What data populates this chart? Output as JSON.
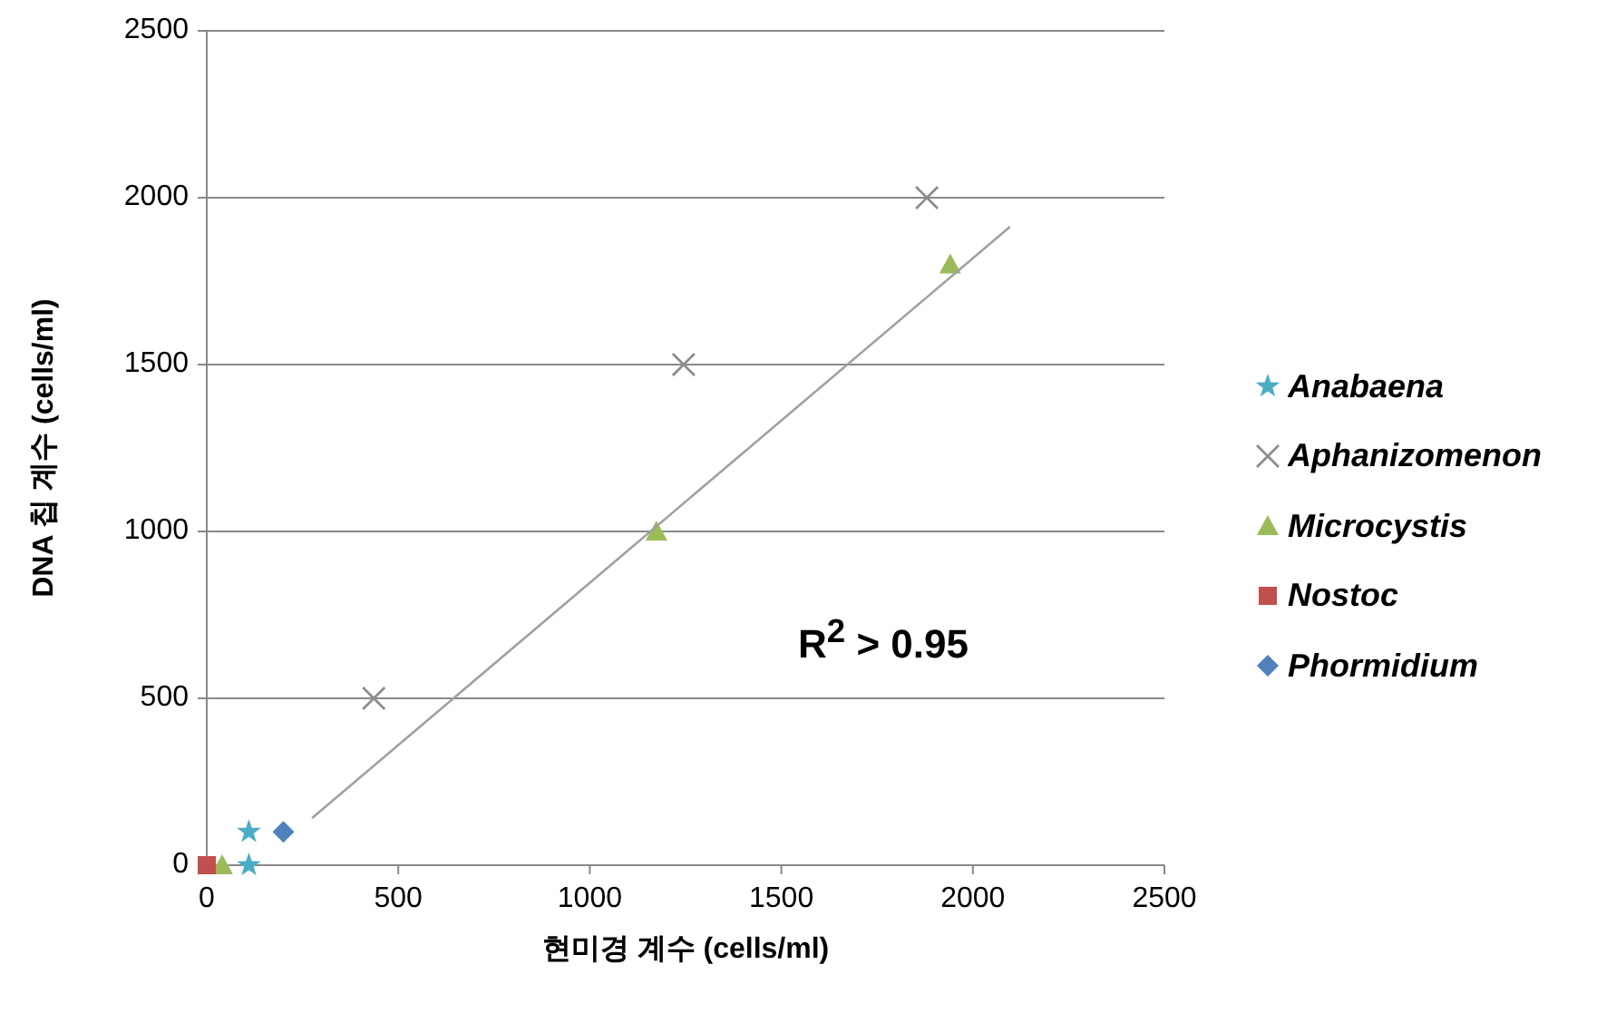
{
  "chart_data": {
    "type": "scatter",
    "xlabel": "현미경 계수 (cells/ml)",
    "ylabel": "DNA 칩 계수 (cells/ml)",
    "xlim": [
      0,
      2500
    ],
    "ylim": [
      0,
      2500
    ],
    "xticks": [
      0,
      500,
      1000,
      1500,
      2000,
      2500
    ],
    "yticks": [
      0,
      500,
      1000,
      1500,
      2000,
      2500
    ],
    "grid": "y",
    "legend": "right",
    "series": [
      {
        "name": "*Anabaena*",
        "color": "#4bacc6",
        "marker": "star",
        "x": [
          110,
          110
        ],
        "values": [
          100,
          0
        ]
      },
      {
        "name": "*Aphanizomenon*",
        "color": "#8c8c8c",
        "marker": "cross",
        "x": [
          436,
          1245,
          1880
        ],
        "values": [
          500,
          1500,
          2000
        ]
      },
      {
        "name": "*Microcystis*",
        "color": "#9bbb59",
        "marker": "triangle",
        "x": [
          40,
          1174,
          1941
        ],
        "values": [
          0,
          1000,
          1800
        ]
      },
      {
        "name": "*Nostoc*",
        "color": "#c0504d",
        "marker": "square",
        "x": [
          0
        ],
        "values": [
          0
        ]
      },
      {
        "name": "*Phormidium*",
        "color": "#4f81bd",
        "marker": "diamond",
        "x": [
          200
        ],
        "values": [
          100
        ]
      },
      {
        "type": "line",
        "color": "#a0a0a0",
        "marker": "none",
        "x": [
          275,
          2097
        ],
        "values": [
          141,
          1913
        ]
      }
    ],
    "annotations": [
      {
        "text": "R$^{2}$ > 0.95"
      }
    ]
  }
}
